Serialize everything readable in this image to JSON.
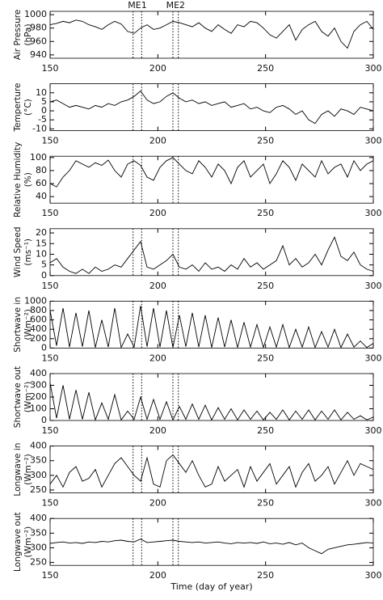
{
  "xlabel": "Time (day of year)",
  "events": [
    {
      "label": "ME1",
      "start": 188.5,
      "end": 192.5
    },
    {
      "label": "ME2",
      "start": 207,
      "end": 209.5
    }
  ],
  "chart_data": [
    {
      "type": "line",
      "ylabel": [
        "Air Pressure",
        "(hPa)"
      ],
      "xlim": [
        150,
        300
      ],
      "xticks": [
        150,
        200,
        250,
        300
      ],
      "ylim": [
        935,
        1005
      ],
      "yticks": [
        940,
        960,
        980,
        1000
      ],
      "series": [
        {
          "color": "#000000",
          "x": [
            150,
            153,
            156,
            159,
            162,
            165,
            168,
            171,
            174,
            177,
            180,
            183,
            186,
            189,
            192,
            195,
            198,
            201,
            204,
            207,
            210,
            213,
            216,
            219,
            222,
            225,
            228,
            231,
            234,
            237,
            240,
            243,
            246,
            249,
            252,
            255,
            258,
            261,
            264,
            267,
            270,
            273,
            276,
            279,
            282,
            285,
            288,
            291,
            294,
            297,
            300
          ],
          "values": [
            985,
            987,
            990,
            988,
            992,
            990,
            985,
            982,
            978,
            985,
            990,
            986,
            975,
            972,
            980,
            985,
            978,
            980,
            985,
            990,
            988,
            985,
            982,
            988,
            980,
            975,
            985,
            978,
            972,
            985,
            982,
            990,
            988,
            980,
            970,
            965,
            975,
            985,
            962,
            978,
            985,
            990,
            975,
            968,
            980,
            960,
            950,
            975,
            985,
            990,
            978
          ]
        }
      ]
    },
    {
      "type": "line",
      "ylabel": [
        "Temperture",
        "(°C)"
      ],
      "xlim": [
        150,
        300
      ],
      "xticks": [
        150,
        200,
        250,
        300
      ],
      "ylim": [
        -11,
        15
      ],
      "yticks": [
        -10,
        -5,
        0,
        5,
        10
      ],
      "series": [
        {
          "color": "#000000",
          "x": [
            150,
            153,
            156,
            159,
            162,
            165,
            168,
            171,
            174,
            177,
            180,
            183,
            186,
            189,
            192,
            195,
            198,
            201,
            204,
            207,
            210,
            213,
            216,
            219,
            222,
            225,
            228,
            231,
            234,
            237,
            240,
            243,
            246,
            249,
            252,
            255,
            258,
            261,
            264,
            267,
            270,
            273,
            276,
            279,
            282,
            285,
            288,
            291,
            294,
            297,
            300
          ],
          "values": [
            5,
            6,
            4,
            2,
            3,
            2,
            1,
            3,
            2,
            4,
            3,
            5,
            6,
            8,
            11,
            6,
            4,
            5,
            8,
            10,
            7,
            5,
            6,
            4,
            5,
            3,
            4,
            5,
            2,
            3,
            4,
            1,
            2,
            0,
            -1,
            2,
            3,
            1,
            -2,
            0,
            -5,
            -7,
            -2,
            0,
            -3,
            1,
            0,
            -2,
            2,
            1,
            0
          ]
        }
      ]
    },
    {
      "type": "line",
      "ylabel": [
        "Relative Humidity",
        "(%)"
      ],
      "xlim": [
        150,
        300
      ],
      "xticks": [
        150,
        200,
        250,
        300
      ],
      "ylim": [
        30,
        102
      ],
      "yticks": [
        40,
        60,
        80,
        100
      ],
      "series": [
        {
          "color": "#000000",
          "x": [
            150,
            153,
            156,
            159,
            162,
            165,
            168,
            171,
            174,
            177,
            180,
            183,
            186,
            189,
            192,
            195,
            198,
            201,
            204,
            207,
            210,
            213,
            216,
            219,
            222,
            225,
            228,
            231,
            234,
            237,
            240,
            243,
            246,
            249,
            252,
            255,
            258,
            261,
            264,
            267,
            270,
            273,
            276,
            279,
            282,
            285,
            288,
            291,
            294,
            297,
            300
          ],
          "values": [
            60,
            55,
            70,
            80,
            95,
            90,
            85,
            92,
            88,
            96,
            80,
            70,
            90,
            95,
            88,
            70,
            65,
            85,
            95,
            100,
            90,
            80,
            75,
            95,
            85,
            70,
            90,
            80,
            60,
            85,
            95,
            70,
            80,
            90,
            60,
            75,
            95,
            85,
            65,
            90,
            80,
            70,
            95,
            75,
            85,
            90,
            70,
            95,
            80,
            90,
            95
          ]
        }
      ]
    },
    {
      "type": "line",
      "ylabel": [
        "Wind Speed",
        "(ms⁻¹)"
      ],
      "xlim": [
        150,
        300
      ],
      "xticks": [
        150,
        200,
        250,
        300
      ],
      "ylim": [
        0,
        22
      ],
      "yticks": [
        0,
        5,
        10,
        15,
        20
      ],
      "series": [
        {
          "color": "#000000",
          "x": [
            150,
            153,
            156,
            159,
            162,
            165,
            168,
            171,
            174,
            177,
            180,
            183,
            186,
            189,
            192,
            195,
            198,
            201,
            204,
            207,
            210,
            213,
            216,
            219,
            222,
            225,
            228,
            231,
            234,
            237,
            240,
            243,
            246,
            249,
            252,
            255,
            258,
            261,
            264,
            267,
            270,
            273,
            276,
            279,
            282,
            285,
            288,
            291,
            294,
            297,
            300
          ],
          "values": [
            6,
            8,
            4,
            2,
            1,
            3,
            1,
            4,
            2,
            3,
            5,
            4,
            8,
            12,
            16,
            4,
            3,
            5,
            7,
            10,
            4,
            3,
            5,
            2,
            6,
            3,
            4,
            2,
            5,
            3,
            8,
            4,
            6,
            3,
            5,
            7,
            14,
            5,
            8,
            4,
            6,
            10,
            5,
            12,
            18,
            9,
            7,
            11,
            5,
            3,
            2
          ]
        }
      ]
    },
    {
      "type": "line",
      "ylabel": [
        "Shortwave in",
        "(Wm⁻²)"
      ],
      "xlim": [
        150,
        300
      ],
      "xticks": [
        150,
        200,
        250,
        300
      ],
      "ylim": [
        0,
        1000
      ],
      "yticks": [
        0,
        200,
        400,
        600,
        800,
        1000
      ],
      "series": [
        {
          "color": "#000000",
          "x": [
            150,
            153,
            156,
            159,
            162,
            165,
            168,
            171,
            174,
            177,
            180,
            183,
            186,
            189,
            192,
            195,
            198,
            201,
            204,
            207,
            210,
            213,
            216,
            219,
            222,
            225,
            228,
            231,
            234,
            237,
            240,
            243,
            246,
            249,
            252,
            255,
            258,
            261,
            264,
            267,
            270,
            273,
            276,
            279,
            282,
            285,
            288,
            291,
            294,
            297,
            300
          ],
          "values": [
            800,
            50,
            850,
            20,
            750,
            30,
            800,
            10,
            600,
            20,
            850,
            10,
            300,
            20,
            900,
            30,
            850,
            20,
            800,
            10,
            700,
            30,
            750,
            20,
            700,
            10,
            650,
            20,
            600,
            10,
            550,
            20,
            500,
            10,
            450,
            20,
            500,
            10,
            400,
            20,
            450,
            10,
            350,
            20,
            400,
            10,
            300,
            20,
            150,
            10,
            100
          ]
        }
      ]
    },
    {
      "type": "line",
      "ylabel": [
        "Shortwave out",
        "(Wm⁻²)"
      ],
      "xlim": [
        150,
        300
      ],
      "xticks": [
        150,
        200,
        250,
        300
      ],
      "ylim": [
        0,
        400
      ],
      "yticks": [
        0,
        100,
        200,
        300,
        400
      ],
      "series": [
        {
          "color": "#000000",
          "x": [
            150,
            153,
            156,
            159,
            162,
            165,
            168,
            171,
            174,
            177,
            180,
            183,
            186,
            189,
            192,
            195,
            198,
            201,
            204,
            207,
            210,
            213,
            216,
            219,
            222,
            225,
            228,
            231,
            234,
            237,
            240,
            243,
            246,
            249,
            252,
            255,
            258,
            261,
            264,
            267,
            270,
            273,
            276,
            279,
            282,
            285,
            288,
            291,
            294,
            297,
            300
          ],
          "values": [
            320,
            20,
            300,
            10,
            260,
            10,
            240,
            5,
            150,
            10,
            220,
            5,
            80,
            10,
            200,
            10,
            180,
            10,
            160,
            5,
            120,
            10,
            140,
            10,
            130,
            5,
            110,
            10,
            100,
            5,
            90,
            10,
            80,
            5,
            70,
            10,
            90,
            5,
            80,
            10,
            90,
            5,
            80,
            10,
            90,
            5,
            70,
            10,
            40,
            5,
            30
          ]
        }
      ]
    },
    {
      "type": "line",
      "ylabel": [
        "Longwave in",
        "(Wm⁻²)"
      ],
      "xlim": [
        150,
        300
      ],
      "xticks": [
        150,
        200,
        250,
        300
      ],
      "ylim": [
        240,
        400
      ],
      "yticks": [
        250,
        300,
        350,
        400
      ],
      "series": [
        {
          "color": "#000000",
          "x": [
            150,
            153,
            156,
            159,
            162,
            165,
            168,
            171,
            174,
            177,
            180,
            183,
            186,
            189,
            192,
            195,
            198,
            201,
            204,
            207,
            210,
            213,
            216,
            219,
            222,
            225,
            228,
            231,
            234,
            237,
            240,
            243,
            246,
            249,
            252,
            255,
            258,
            261,
            264,
            267,
            270,
            273,
            276,
            279,
            282,
            285,
            288,
            291,
            294,
            297,
            300
          ],
          "values": [
            270,
            300,
            260,
            310,
            330,
            280,
            290,
            320,
            260,
            300,
            340,
            360,
            330,
            300,
            280,
            360,
            270,
            260,
            350,
            370,
            340,
            310,
            350,
            300,
            260,
            270,
            330,
            280,
            300,
            320,
            260,
            330,
            280,
            310,
            340,
            270,
            300,
            330,
            260,
            310,
            340,
            280,
            300,
            330,
            270,
            310,
            350,
            300,
            340,
            330,
            320
          ]
        }
      ]
    },
    {
      "type": "line",
      "ylabel": [
        "Longwave out",
        "(Wm⁻²)"
      ],
      "xlim": [
        150,
        300
      ],
      "xticks": [
        150,
        200,
        250,
        300
      ],
      "ylim": [
        240,
        400
      ],
      "yticks": [
        250,
        300,
        350,
        400
      ],
      "series": [
        {
          "color": "#000000",
          "x": [
            150,
            153,
            156,
            159,
            162,
            165,
            168,
            171,
            174,
            177,
            180,
            183,
            186,
            189,
            192,
            195,
            198,
            201,
            204,
            207,
            210,
            213,
            216,
            219,
            222,
            225,
            228,
            231,
            234,
            237,
            240,
            243,
            246,
            249,
            252,
            255,
            258,
            261,
            264,
            267,
            270,
            273,
            276,
            279,
            282,
            285,
            288,
            291,
            294,
            297,
            300
          ],
          "values": [
            315,
            318,
            320,
            316,
            318,
            315,
            320,
            318,
            322,
            320,
            324,
            326,
            322,
            320,
            330,
            318,
            320,
            322,
            324,
            326,
            322,
            320,
            318,
            320,
            316,
            318,
            320,
            316,
            314,
            318,
            316,
            318,
            315,
            320,
            314,
            316,
            312,
            318,
            310,
            316,
            300,
            290,
            280,
            295,
            300,
            305,
            310,
            312,
            315,
            318,
            316
          ]
        }
      ]
    }
  ]
}
